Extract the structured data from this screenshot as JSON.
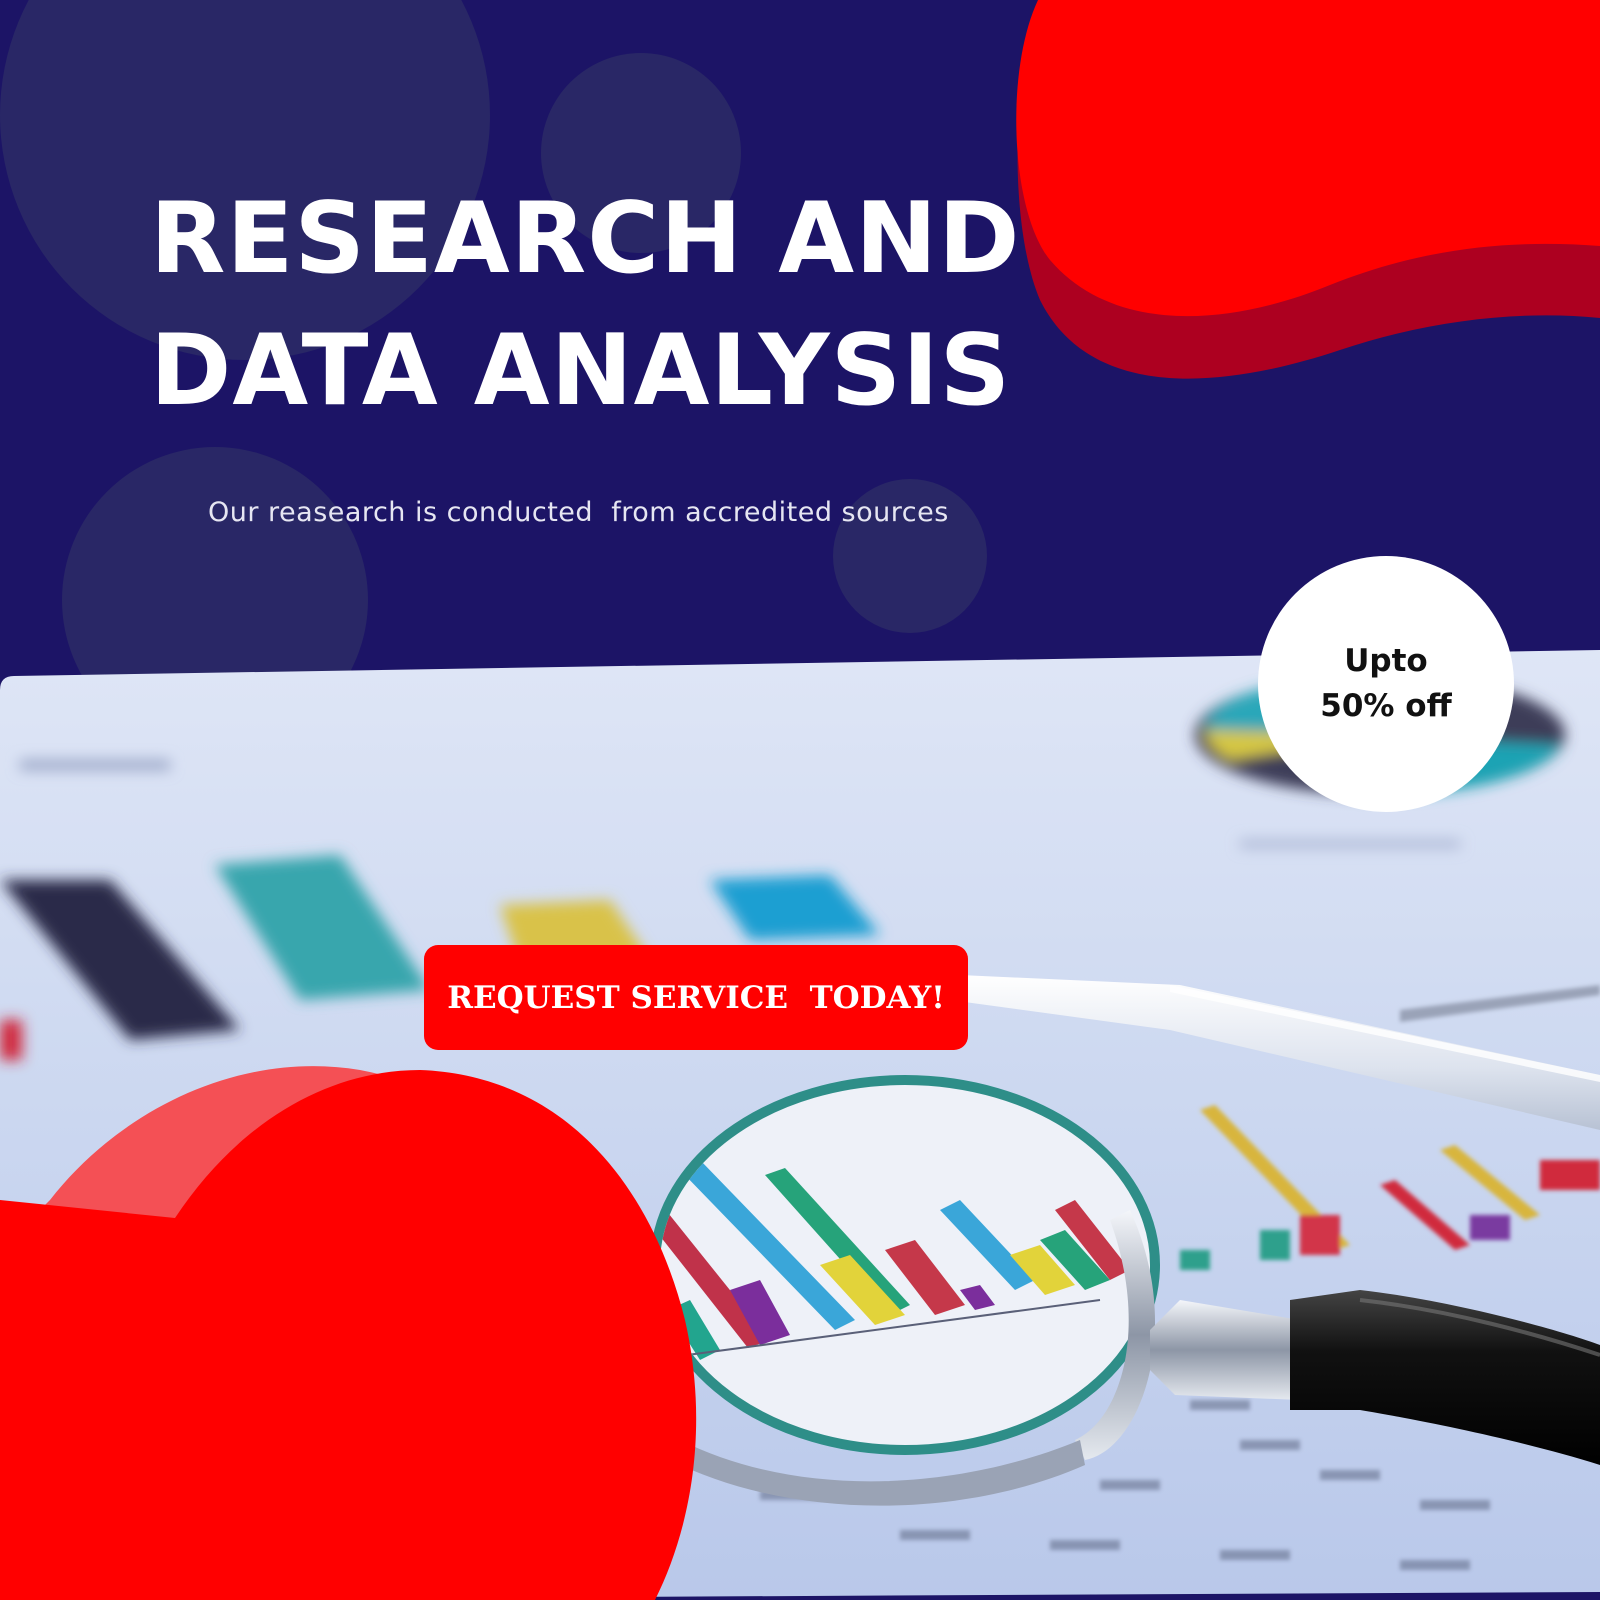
{
  "headline": {
    "line1": "RESEARCH AND",
    "line2": "DATA ANALYSIS"
  },
  "subtitle": "Our reasearch is conducted  from accredited sources",
  "badge": {
    "line1": "Upto",
    "line2": "50% off"
  },
  "cta": {
    "label": "REQUEST SERVICE  TODAY!"
  },
  "colors": {
    "background": "#1c1466",
    "accent_red": "#ff0000",
    "dark_red": "#b0001e",
    "text": "#ffffff"
  },
  "icons": [
    "magnifying-glass-icon",
    "bar-chart-icon",
    "pie-chart-icon",
    "pen-icon"
  ]
}
